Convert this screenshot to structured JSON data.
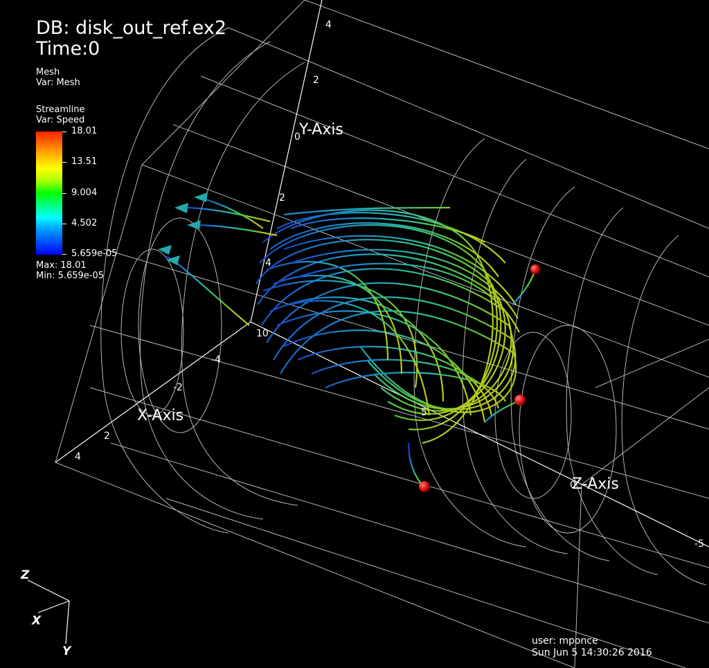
{
  "header": {
    "db_title": "DB: disk_out_ref.ex2",
    "time_label": "Time:0"
  },
  "legend": {
    "mesh_plot": "Mesh",
    "mesh_var": "Var: Mesh",
    "stream_plot": "Streamline",
    "stream_var": "Var: Speed",
    "ticks": [
      "18.01",
      "13.51",
      "9.004",
      "4.502",
      "5.659e-05"
    ],
    "max_label": "Max:  18.01",
    "min_label": "Min:  5.659e-05"
  },
  "axes": {
    "y_title": "Y-Axis",
    "x_title": "X-Axis",
    "z_title": "Z-Axis",
    "y_ticks": [
      "4",
      "2",
      "0",
      "2",
      "4"
    ],
    "x_ticks": [
      "4",
      "2",
      "-2",
      "-4"
    ],
    "z_ticks": [
      "10",
      "5",
      "0",
      "-5"
    ]
  },
  "triad": {
    "z": "Z",
    "x": "X",
    "y": "Y"
  },
  "footer": {
    "user": "user: mponce",
    "date": "Sun Jun  5 14:30:26 2016"
  },
  "colors": {
    "background": "#000000",
    "mesh": "#d8d8d8",
    "seed": "#dd1111",
    "arrow": "#22aaaa"
  }
}
